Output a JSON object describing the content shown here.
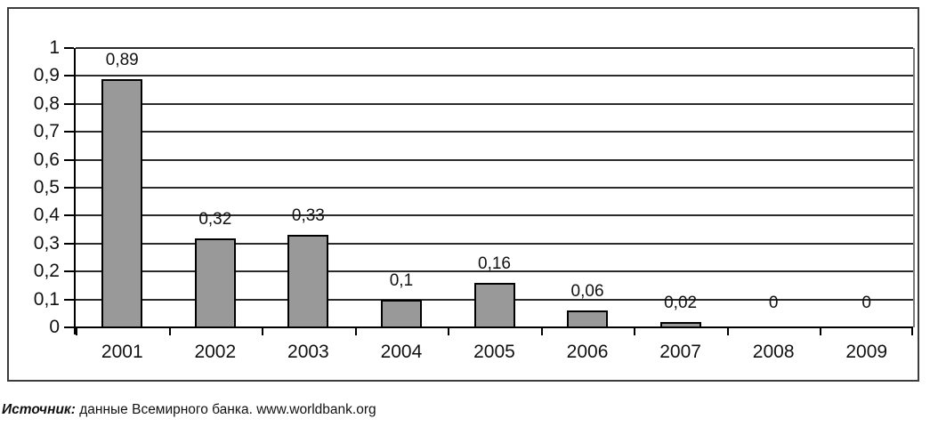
{
  "chart_data": {
    "type": "bar",
    "title": "",
    "xlabel": "",
    "ylabel": "",
    "categories": [
      "2001",
      "2002",
      "2003",
      "2004",
      "2005",
      "2006",
      "2007",
      "2008",
      "2009"
    ],
    "values": [
      0.89,
      0.32,
      0.33,
      0.1,
      0.16,
      0.06,
      0.02,
      0,
      0
    ],
    "value_labels": [
      "0,89",
      "0,32",
      "0,33",
      "0,1",
      "0,16",
      "0,06",
      "0,02",
      "0",
      "0"
    ],
    "ylim": [
      0,
      1
    ],
    "y_tick_step": 0.1,
    "y_tick_labels": [
      "0",
      "0,1",
      "0,2",
      "0,3",
      "0,4",
      "0,5",
      "0,6",
      "0,7",
      "0,8",
      "0,9",
      "1"
    ],
    "grid": "horizontal",
    "legend": "none",
    "bar_color": "#999999",
    "bar_border_color": "#000000"
  },
  "caption": {
    "source_label": "Источник:",
    "source_text": "данные Всемирного банка. www.worldbank.org"
  }
}
